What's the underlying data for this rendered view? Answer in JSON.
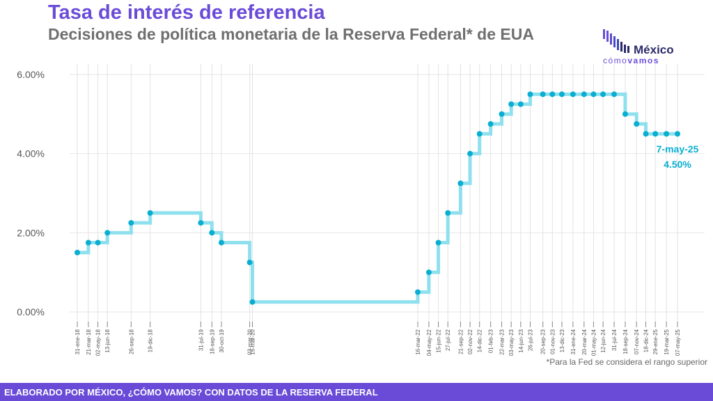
{
  "header": {
    "title": "Tasa de interés de referencia",
    "subtitle": "Decisiones de política monetaria de la Reserva Federal* de EUA"
  },
  "logo": {
    "brand_top": "México",
    "brand_bottom_light": "cómo",
    "brand_bottom_bold": "vamos"
  },
  "footnote": "*Para la Fed se considera el rango superior",
  "footer": {
    "text": "ELABORADO POR MÉXICO, ¿CÓMO VAMOS? CON DATOS DE LA RESERVA FEDERAL"
  },
  "colors": {
    "title": "#6a4bd8",
    "line": "#8fe0ee",
    "point": "#0aaed0",
    "annotation": "#0aaed0",
    "footer_bg": "#6a4bd8"
  },
  "chart_data": {
    "type": "line",
    "step": true,
    "title": "",
    "xlabel": "",
    "ylabel": "",
    "ylim": [
      0,
      6
    ],
    "y_ticks": [
      "0.00%",
      "2.00%",
      "4.00%",
      "6.00%"
    ],
    "grid": true,
    "x": [
      "2018-01-31",
      "2018-03-21",
      "2018-05-02",
      "2018-06-13",
      "2018-09-26",
      "2018-12-19",
      "2019-07-31",
      "2019-09-18",
      "2019-10-30",
      "2020-03-03",
      "2020-03-15",
      "2022-03-16",
      "2022-05-04",
      "2022-06-15",
      "2022-07-27",
      "2022-09-21",
      "2022-11-02",
      "2022-12-14",
      "2023-02-01",
      "2023-03-22",
      "2023-05-03",
      "2023-06-14",
      "2023-07-26",
      "2023-09-20",
      "2023-11-01",
      "2023-12-13",
      "2024-01-31",
      "2024-03-20",
      "2024-05-01",
      "2024-06-12",
      "2024-07-31",
      "2024-09-18",
      "2024-11-07",
      "2024-12-18",
      "2025-01-29",
      "2025-03-19",
      "2025-05-07"
    ],
    "x_tick_labels": [
      "31-ene-18",
      "21-mar-18",
      "02-may-18",
      "13-jun-18",
      "26-sep-18",
      "19-dic-18",
      "31-jul-19",
      "18-sep-19",
      "30-oct-19",
      "03-mar-20",
      "15-mar-20",
      "16-mar-22",
      "04-may-22",
      "15-jun-22",
      "27-jul-22",
      "21-sep-22",
      "02-nov-22",
      "14-dic-22",
      "01-feb-23",
      "22-mar-23",
      "03-may-23",
      "14-jun-23",
      "26-jul-23",
      "20-sep-23",
      "01-nov-23",
      "13-dic-23",
      "31-ene-24",
      "20-mar-24",
      "01-may-24",
      "12-jun-24",
      "31-jul-24",
      "18-sep-24",
      "07-nov-24",
      "18-dic-24",
      "29-ene-25",
      "19-mar-25",
      "07-may-25"
    ],
    "series": [
      {
        "name": "",
        "values": [
          1.5,
          1.75,
          1.75,
          2.0,
          2.25,
          2.5,
          2.25,
          2.0,
          1.75,
          1.25,
          0.25,
          0.5,
          1.0,
          1.75,
          2.5,
          3.25,
          4.0,
          4.5,
          4.75,
          5.0,
          5.25,
          5.25,
          5.5,
          5.5,
          5.5,
          5.5,
          5.5,
          5.5,
          5.5,
          5.5,
          5.5,
          5.0,
          4.75,
          4.5,
          4.5,
          4.5,
          4.5
        ]
      }
    ],
    "annotation": {
      "label": "7-may-25",
      "value": "4.50%"
    }
  }
}
